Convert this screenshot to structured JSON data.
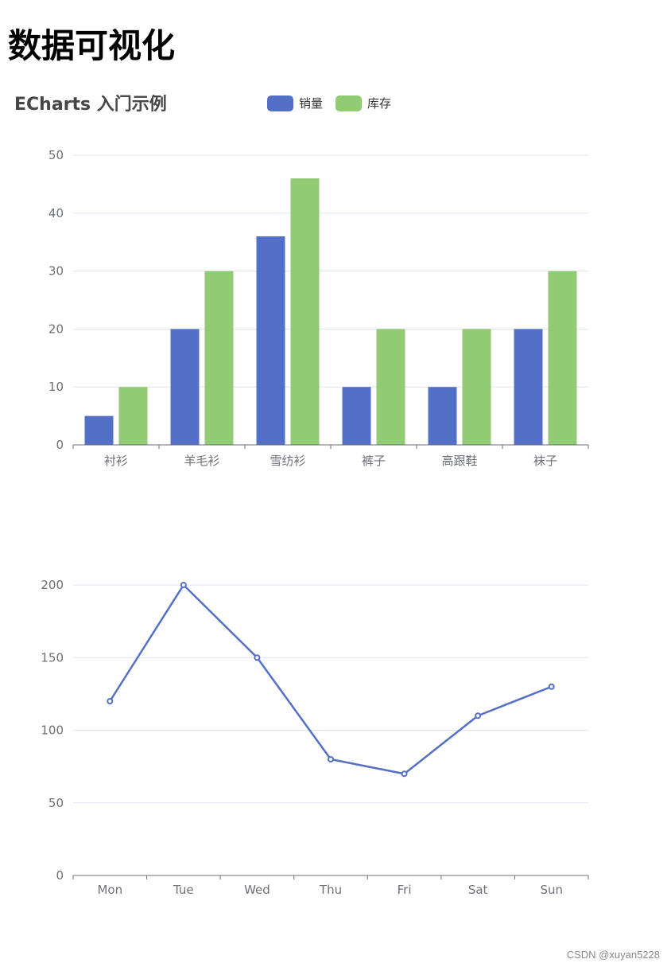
{
  "page": {
    "title": "数据可视化",
    "watermark": "CSDN @xuyan5228"
  },
  "colors": {
    "series_blue": "#5470c6",
    "series_green": "#91cc75",
    "axis": "#6e7079",
    "grid": "#e0e6f1",
    "chart_title": "#464646"
  },
  "chart_data": [
    {
      "type": "bar",
      "title": "ECharts 入门示例",
      "legend_position": "top",
      "categories": [
        "衬衫",
        "羊毛衫",
        "雪纺衫",
        "裤子",
        "高跟鞋",
        "袜子"
      ],
      "series": [
        {
          "name": "销量",
          "color": "#5470c6",
          "values": [
            5,
            20,
            36,
            10,
            10,
            20
          ]
        },
        {
          "name": "库存",
          "color": "#91cc75",
          "values": [
            10,
            30,
            46,
            20,
            20,
            30
          ]
        }
      ],
      "ylim": [
        0,
        50
      ],
      "yticks": [
        0,
        10,
        20,
        30,
        40,
        50
      ],
      "grid": true
    },
    {
      "type": "line",
      "categories": [
        "Mon",
        "Tue",
        "Wed",
        "Thu",
        "Fri",
        "Sat",
        "Sun"
      ],
      "series": [
        {
          "color": "#5470c6",
          "values": [
            120,
            200,
            150,
            80,
            70,
            110,
            130
          ]
        }
      ],
      "ylim": [
        0,
        200
      ],
      "yticks": [
        0,
        50,
        100,
        150,
        200
      ],
      "grid": true
    }
  ]
}
